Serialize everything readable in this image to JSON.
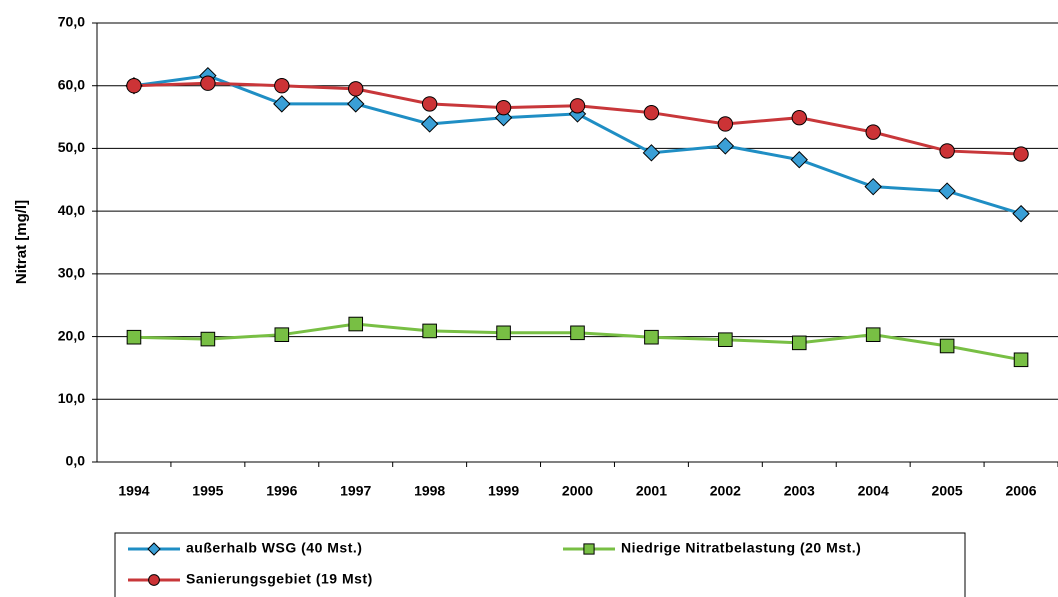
{
  "chart_data": {
    "type": "line",
    "y_label": "Nitrat [mg/l]",
    "categories": [
      "1994",
      "1995",
      "1996",
      "1997",
      "1998",
      "1999",
      "2000",
      "2001",
      "2002",
      "2003",
      "2004",
      "2005",
      "2006"
    ],
    "series": [
      {
        "name": "außerhalb WSG (40 Mst.)",
        "color": "#1f8ec4",
        "fill": "#3a9fd6",
        "marker": "diamond",
        "values": [
          60.0,
          61.6,
          57.1,
          57.1,
          53.9,
          54.9,
          55.5,
          49.3,
          50.4,
          48.2,
          43.9,
          43.2,
          39.6
        ]
      },
      {
        "name": "Niedrige Nitratbelastung (20 Mst.)",
        "color": "#78bf44",
        "fill": "#78bf44",
        "marker": "square",
        "values": [
          19.9,
          19.6,
          20.3,
          22.0,
          20.9,
          20.6,
          20.6,
          19.9,
          19.5,
          19.0,
          20.3,
          18.5,
          16.3
        ]
      },
      {
        "name": "Sanierungsgebiet (19 Mst)",
        "color": "#c8373a",
        "fill": "#cc3336",
        "marker": "circle",
        "values": [
          60.0,
          60.4,
          60.0,
          59.5,
          57.1,
          56.5,
          56.8,
          55.7,
          53.9,
          54.9,
          52.6,
          49.6,
          49.1
        ]
      }
    ],
    "ylim": [
      0,
      70
    ],
    "yticks": [
      {
        "value": 0,
        "label": "0,0"
      },
      {
        "value": 10,
        "label": "10,0"
      },
      {
        "value": 20,
        "label": "20,0"
      },
      {
        "value": 30,
        "label": "30,0"
      },
      {
        "value": 40,
        "label": "40,0"
      },
      {
        "value": 50,
        "label": "50,0"
      },
      {
        "value": 60,
        "label": "60,0"
      },
      {
        "value": 70,
        "label": "70,0"
      }
    ],
    "grid": true,
    "legend": "bottom"
  }
}
